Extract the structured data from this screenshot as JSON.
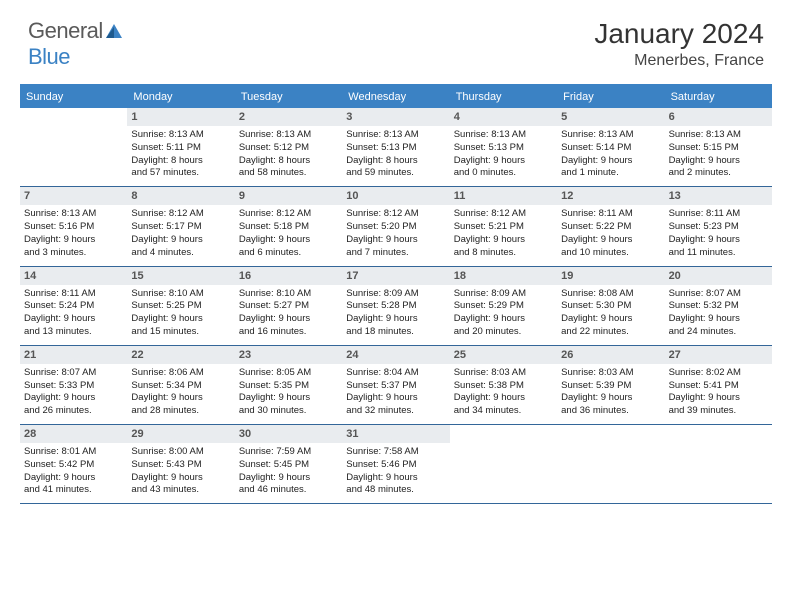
{
  "brand": {
    "part1": "General",
    "part2": "Blue"
  },
  "title": "January 2024",
  "location": "Menerbes, France",
  "colors": {
    "header_bg": "#3b82c4",
    "daynum_bg": "#e9ecef",
    "rule": "#336699",
    "text": "#222222",
    "title_text": "#333333"
  },
  "weekdays": [
    "Sunday",
    "Monday",
    "Tuesday",
    "Wednesday",
    "Thursday",
    "Friday",
    "Saturday"
  ],
  "weeks": [
    [
      {
        "n": "",
        "l1": "",
        "l2": "",
        "l3": "",
        "l4": ""
      },
      {
        "n": "1",
        "l1": "Sunrise: 8:13 AM",
        "l2": "Sunset: 5:11 PM",
        "l3": "Daylight: 8 hours",
        "l4": "and 57 minutes."
      },
      {
        "n": "2",
        "l1": "Sunrise: 8:13 AM",
        "l2": "Sunset: 5:12 PM",
        "l3": "Daylight: 8 hours",
        "l4": "and 58 minutes."
      },
      {
        "n": "3",
        "l1": "Sunrise: 8:13 AM",
        "l2": "Sunset: 5:13 PM",
        "l3": "Daylight: 8 hours",
        "l4": "and 59 minutes."
      },
      {
        "n": "4",
        "l1": "Sunrise: 8:13 AM",
        "l2": "Sunset: 5:13 PM",
        "l3": "Daylight: 9 hours",
        "l4": "and 0 minutes."
      },
      {
        "n": "5",
        "l1": "Sunrise: 8:13 AM",
        "l2": "Sunset: 5:14 PM",
        "l3": "Daylight: 9 hours",
        "l4": "and 1 minute."
      },
      {
        "n": "6",
        "l1": "Sunrise: 8:13 AM",
        "l2": "Sunset: 5:15 PM",
        "l3": "Daylight: 9 hours",
        "l4": "and 2 minutes."
      }
    ],
    [
      {
        "n": "7",
        "l1": "Sunrise: 8:13 AM",
        "l2": "Sunset: 5:16 PM",
        "l3": "Daylight: 9 hours",
        "l4": "and 3 minutes."
      },
      {
        "n": "8",
        "l1": "Sunrise: 8:12 AM",
        "l2": "Sunset: 5:17 PM",
        "l3": "Daylight: 9 hours",
        "l4": "and 4 minutes."
      },
      {
        "n": "9",
        "l1": "Sunrise: 8:12 AM",
        "l2": "Sunset: 5:18 PM",
        "l3": "Daylight: 9 hours",
        "l4": "and 6 minutes."
      },
      {
        "n": "10",
        "l1": "Sunrise: 8:12 AM",
        "l2": "Sunset: 5:20 PM",
        "l3": "Daylight: 9 hours",
        "l4": "and 7 minutes."
      },
      {
        "n": "11",
        "l1": "Sunrise: 8:12 AM",
        "l2": "Sunset: 5:21 PM",
        "l3": "Daylight: 9 hours",
        "l4": "and 8 minutes."
      },
      {
        "n": "12",
        "l1": "Sunrise: 8:11 AM",
        "l2": "Sunset: 5:22 PM",
        "l3": "Daylight: 9 hours",
        "l4": "and 10 minutes."
      },
      {
        "n": "13",
        "l1": "Sunrise: 8:11 AM",
        "l2": "Sunset: 5:23 PM",
        "l3": "Daylight: 9 hours",
        "l4": "and 11 minutes."
      }
    ],
    [
      {
        "n": "14",
        "l1": "Sunrise: 8:11 AM",
        "l2": "Sunset: 5:24 PM",
        "l3": "Daylight: 9 hours",
        "l4": "and 13 minutes."
      },
      {
        "n": "15",
        "l1": "Sunrise: 8:10 AM",
        "l2": "Sunset: 5:25 PM",
        "l3": "Daylight: 9 hours",
        "l4": "and 15 minutes."
      },
      {
        "n": "16",
        "l1": "Sunrise: 8:10 AM",
        "l2": "Sunset: 5:27 PM",
        "l3": "Daylight: 9 hours",
        "l4": "and 16 minutes."
      },
      {
        "n": "17",
        "l1": "Sunrise: 8:09 AM",
        "l2": "Sunset: 5:28 PM",
        "l3": "Daylight: 9 hours",
        "l4": "and 18 minutes."
      },
      {
        "n": "18",
        "l1": "Sunrise: 8:09 AM",
        "l2": "Sunset: 5:29 PM",
        "l3": "Daylight: 9 hours",
        "l4": "and 20 minutes."
      },
      {
        "n": "19",
        "l1": "Sunrise: 8:08 AM",
        "l2": "Sunset: 5:30 PM",
        "l3": "Daylight: 9 hours",
        "l4": "and 22 minutes."
      },
      {
        "n": "20",
        "l1": "Sunrise: 8:07 AM",
        "l2": "Sunset: 5:32 PM",
        "l3": "Daylight: 9 hours",
        "l4": "and 24 minutes."
      }
    ],
    [
      {
        "n": "21",
        "l1": "Sunrise: 8:07 AM",
        "l2": "Sunset: 5:33 PM",
        "l3": "Daylight: 9 hours",
        "l4": "and 26 minutes."
      },
      {
        "n": "22",
        "l1": "Sunrise: 8:06 AM",
        "l2": "Sunset: 5:34 PM",
        "l3": "Daylight: 9 hours",
        "l4": "and 28 minutes."
      },
      {
        "n": "23",
        "l1": "Sunrise: 8:05 AM",
        "l2": "Sunset: 5:35 PM",
        "l3": "Daylight: 9 hours",
        "l4": "and 30 minutes."
      },
      {
        "n": "24",
        "l1": "Sunrise: 8:04 AM",
        "l2": "Sunset: 5:37 PM",
        "l3": "Daylight: 9 hours",
        "l4": "and 32 minutes."
      },
      {
        "n": "25",
        "l1": "Sunrise: 8:03 AM",
        "l2": "Sunset: 5:38 PM",
        "l3": "Daylight: 9 hours",
        "l4": "and 34 minutes."
      },
      {
        "n": "26",
        "l1": "Sunrise: 8:03 AM",
        "l2": "Sunset: 5:39 PM",
        "l3": "Daylight: 9 hours",
        "l4": "and 36 minutes."
      },
      {
        "n": "27",
        "l1": "Sunrise: 8:02 AM",
        "l2": "Sunset: 5:41 PM",
        "l3": "Daylight: 9 hours",
        "l4": "and 39 minutes."
      }
    ],
    [
      {
        "n": "28",
        "l1": "Sunrise: 8:01 AM",
        "l2": "Sunset: 5:42 PM",
        "l3": "Daylight: 9 hours",
        "l4": "and 41 minutes."
      },
      {
        "n": "29",
        "l1": "Sunrise: 8:00 AM",
        "l2": "Sunset: 5:43 PM",
        "l3": "Daylight: 9 hours",
        "l4": "and 43 minutes."
      },
      {
        "n": "30",
        "l1": "Sunrise: 7:59 AM",
        "l2": "Sunset: 5:45 PM",
        "l3": "Daylight: 9 hours",
        "l4": "and 46 minutes."
      },
      {
        "n": "31",
        "l1": "Sunrise: 7:58 AM",
        "l2": "Sunset: 5:46 PM",
        "l3": "Daylight: 9 hours",
        "l4": "and 48 minutes."
      },
      {
        "n": "",
        "l1": "",
        "l2": "",
        "l3": "",
        "l4": ""
      },
      {
        "n": "",
        "l1": "",
        "l2": "",
        "l3": "",
        "l4": ""
      },
      {
        "n": "",
        "l1": "",
        "l2": "",
        "l3": "",
        "l4": ""
      }
    ]
  ]
}
